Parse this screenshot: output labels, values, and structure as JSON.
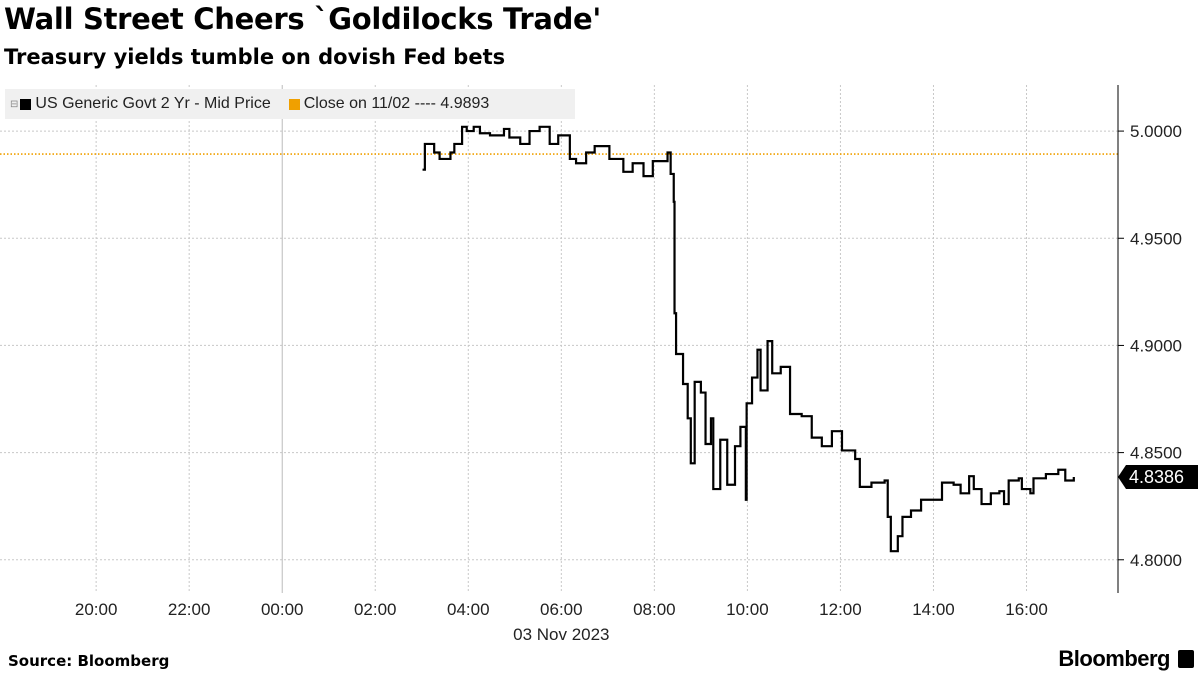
{
  "header": {
    "title": "Wall Street Cheers `Goldilocks Trade'",
    "subtitle": "Treasury yields tumble on dovish Fed bets"
  },
  "footer": {
    "source": "Source: Bloomberg",
    "brand": "Bloomberg"
  },
  "chart_data": {
    "type": "line",
    "step": true,
    "title": "Wall Street Cheers `Goldilocks Trade'",
    "subtitle": "Treasury yields tumble on dovish Fed bets",
    "legend_placement": "top-left",
    "grid": true,
    "xlim": [
      "2023-11-02 17:56",
      "2023-11-03 17:58"
    ],
    "x_ticks": [
      {
        "t": "2023-11-02 20:00",
        "label": "20:00"
      },
      {
        "t": "2023-11-02 22:00",
        "label": "22:00"
      },
      {
        "t": "2023-11-03 00:00",
        "label": "00:00"
      },
      {
        "t": "2023-11-03 02:00",
        "label": "02:00"
      },
      {
        "t": "2023-11-03 04:00",
        "label": "04:00"
      },
      {
        "t": "2023-11-03 06:00",
        "label": "06:00"
      },
      {
        "t": "2023-11-03 08:00",
        "label": "08:00"
      },
      {
        "t": "2023-11-03 10:00",
        "label": "10:00"
      },
      {
        "t": "2023-11-03 12:00",
        "label": "12:00"
      },
      {
        "t": "2023-11-03 14:00",
        "label": "14:00"
      },
      {
        "t": "2023-11-03 16:00",
        "label": "16:00"
      }
    ],
    "x_date_label": "03 Nov 2023",
    "ylim": [
      4.7845,
      5.0215
    ],
    "y_ticks": [
      4.8,
      4.85,
      4.9,
      4.95,
      5.0
    ],
    "y_tick_labels": [
      "4.8000",
      "4.8500",
      "4.9000",
      "4.9500",
      "5.0000"
    ],
    "y_axis_side": "right",
    "last_value_label": "4.8386",
    "colors": {
      "series": "#000000",
      "close": "#f0a000",
      "legend_bg": "#f0f0f0"
    },
    "reference_lines": [
      {
        "name": "Close on 11/02",
        "legend": "Close on 11/02 ---- 4.9893",
        "value": 4.9893,
        "style": "dotted"
      }
    ],
    "series": [
      {
        "name": "US Generic Govt 2 Yr - Mid Price",
        "legend": "US Generic Govt 2 Yr - Mid Price",
        "points": [
          [
            "2023-11-03 03:01",
            4.982
          ],
          [
            "2023-11-03 03:04",
            4.994
          ],
          [
            "2023-11-03 03:10",
            4.994
          ],
          [
            "2023-11-03 03:16",
            4.99
          ],
          [
            "2023-11-03 03:23",
            4.987
          ],
          [
            "2023-11-03 03:37",
            4.99
          ],
          [
            "2023-11-03 03:42",
            4.994
          ],
          [
            "2023-11-03 03:52",
            5.002
          ],
          [
            "2023-11-03 03:58",
            5.0
          ],
          [
            "2023-11-03 04:07",
            5.002
          ],
          [
            "2023-11-03 04:15",
            4.999
          ],
          [
            "2023-11-03 04:28",
            4.998
          ],
          [
            "2023-11-03 04:46",
            5.001
          ],
          [
            "2023-11-03 04:53",
            4.997
          ],
          [
            "2023-11-03 05:07",
            4.994
          ],
          [
            "2023-11-03 05:19",
            5.0
          ],
          [
            "2023-11-03 05:32",
            5.002
          ],
          [
            "2023-11-03 05:45",
            4.994
          ],
          [
            "2023-11-03 05:56",
            4.998
          ],
          [
            "2023-11-03 06:11",
            4.987
          ],
          [
            "2023-11-03 06:19",
            4.985
          ],
          [
            "2023-11-03 06:32",
            4.99
          ],
          [
            "2023-11-03 06:43",
            4.993
          ],
          [
            "2023-11-03 07:02",
            4.987
          ],
          [
            "2023-11-03 07:20",
            4.981
          ],
          [
            "2023-11-03 07:32",
            4.985
          ],
          [
            "2023-11-03 07:46",
            4.979
          ],
          [
            "2023-11-03 07:58",
            4.986
          ],
          [
            "2023-11-03 08:17",
            4.99
          ],
          [
            "2023-11-03 08:21",
            4.98
          ],
          [
            "2023-11-03 08:25",
            4.967
          ],
          [
            "2023-11-03 08:26",
            4.915
          ],
          [
            "2023-11-03 08:28",
            4.896
          ],
          [
            "2023-11-03 08:37",
            4.882
          ],
          [
            "2023-11-03 08:43",
            4.866
          ],
          [
            "2023-11-03 08:47",
            4.845
          ],
          [
            "2023-11-03 08:52",
            4.883
          ],
          [
            "2023-11-03 09:00",
            4.878
          ],
          [
            "2023-11-03 09:06",
            4.854
          ],
          [
            "2023-11-03 09:13",
            4.866
          ],
          [
            "2023-11-03 09:16",
            4.833
          ],
          [
            "2023-11-03 09:25",
            4.856
          ],
          [
            "2023-11-03 09:34",
            4.835
          ],
          [
            "2023-11-03 09:44",
            4.853
          ],
          [
            "2023-11-03 09:51",
            4.862
          ],
          [
            "2023-11-03 09:58",
            4.828
          ],
          [
            "2023-11-03 09:59",
            4.873
          ],
          [
            "2023-11-03 10:06",
            4.885
          ],
          [
            "2023-11-03 10:13",
            4.898
          ],
          [
            "2023-11-03 10:17",
            4.879
          ],
          [
            "2023-11-03 10:26",
            4.902
          ],
          [
            "2023-11-03 10:32",
            4.887
          ],
          [
            "2023-11-03 10:43",
            4.89
          ],
          [
            "2023-11-03 10:55",
            4.868
          ],
          [
            "2023-11-03 11:10",
            4.867
          ],
          [
            "2023-11-03 11:23",
            4.857
          ],
          [
            "2023-11-03 11:36",
            4.853
          ],
          [
            "2023-11-03 11:49",
            4.86
          ],
          [
            "2023-11-03 12:02",
            4.851
          ],
          [
            "2023-11-03 12:19",
            4.847
          ],
          [
            "2023-11-03 12:25",
            4.834
          ],
          [
            "2023-11-03 12:40",
            4.836
          ],
          [
            "2023-11-03 12:57",
            4.837
          ],
          [
            "2023-11-03 13:01",
            4.82
          ],
          [
            "2023-11-03 13:05",
            4.804
          ],
          [
            "2023-11-03 13:14",
            4.811
          ],
          [
            "2023-11-03 13:20",
            4.82
          ],
          [
            "2023-11-03 13:31",
            4.823
          ],
          [
            "2023-11-03 13:44",
            4.828
          ],
          [
            "2023-11-03 14:01",
            4.828
          ],
          [
            "2023-11-03 14:11",
            4.836
          ],
          [
            "2023-11-03 14:26",
            4.835
          ],
          [
            "2023-11-03 14:35",
            4.831
          ],
          [
            "2023-11-03 14:46",
            4.839
          ],
          [
            "2023-11-03 14:52",
            4.833
          ],
          [
            "2023-11-03 15:02",
            4.826
          ],
          [
            "2023-11-03 15:14",
            4.831
          ],
          [
            "2023-11-03 15:25",
            4.832
          ],
          [
            "2023-11-03 15:31",
            4.826
          ],
          [
            "2023-11-03 15:37",
            4.837
          ],
          [
            "2023-11-03 15:50",
            4.838
          ],
          [
            "2023-11-03 15:54",
            4.833
          ],
          [
            "2023-11-03 16:05",
            4.831
          ],
          [
            "2023-11-03 16:09",
            4.838
          ],
          [
            "2023-11-03 16:25",
            4.84
          ],
          [
            "2023-11-03 16:41",
            4.842
          ],
          [
            "2023-11-03 16:50",
            4.837
          ],
          [
            "2023-11-03 17:01",
            4.8386
          ]
        ]
      }
    ]
  }
}
